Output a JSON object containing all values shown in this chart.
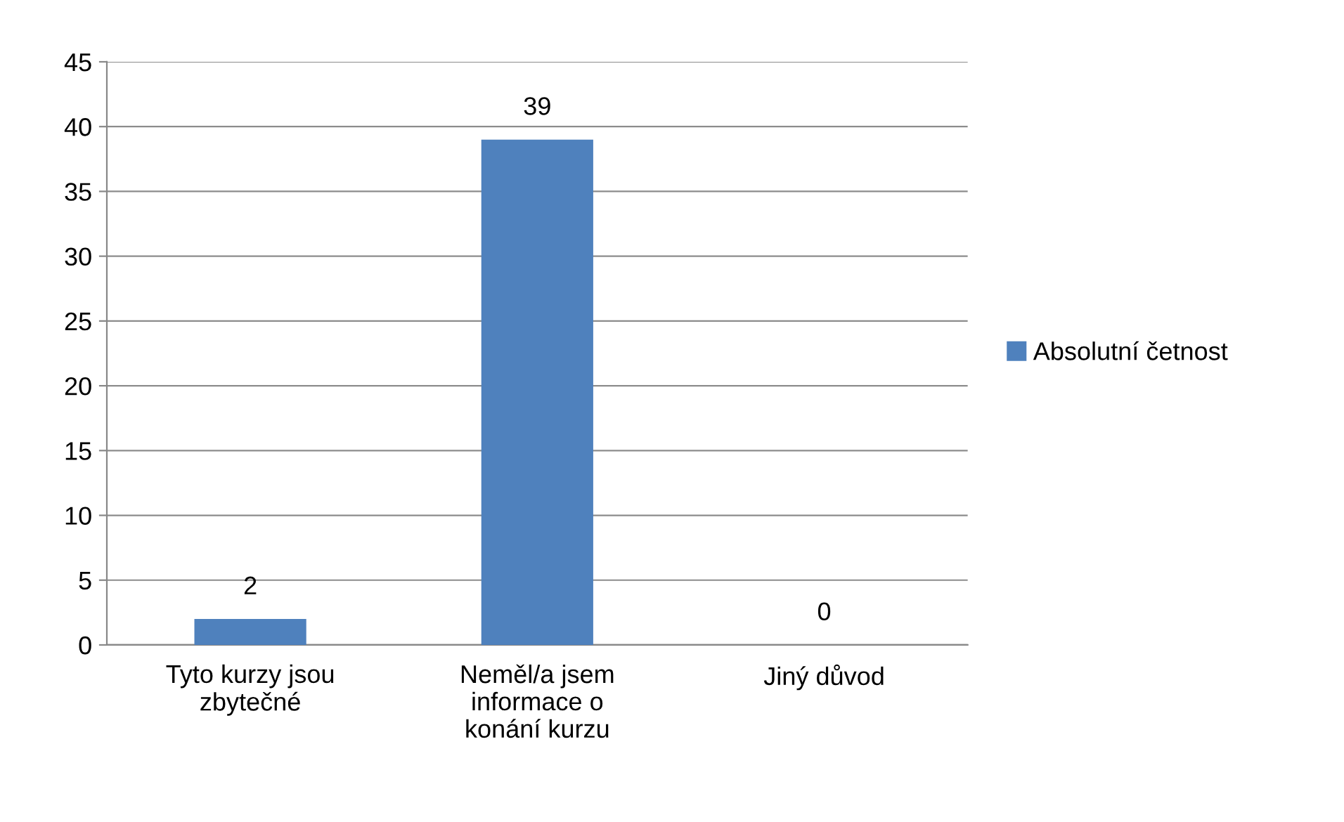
{
  "chart_data": {
    "type": "bar",
    "categories": [
      "Tyto kurzy jsou\nzbytečné",
      "Neměl/a jsem\ninformace o\nkonání kurzu",
      "Jiný důvod"
    ],
    "series": [
      {
        "name": "Absolutní četnost",
        "color": "#4f81bd",
        "values": [
          2,
          39,
          0
        ]
      }
    ],
    "ylim": [
      0,
      45
    ],
    "yticks": [
      0,
      5,
      10,
      15,
      20,
      25,
      30,
      35,
      40,
      45
    ],
    "grid": "y",
    "legend": "right",
    "data_labels": true
  }
}
